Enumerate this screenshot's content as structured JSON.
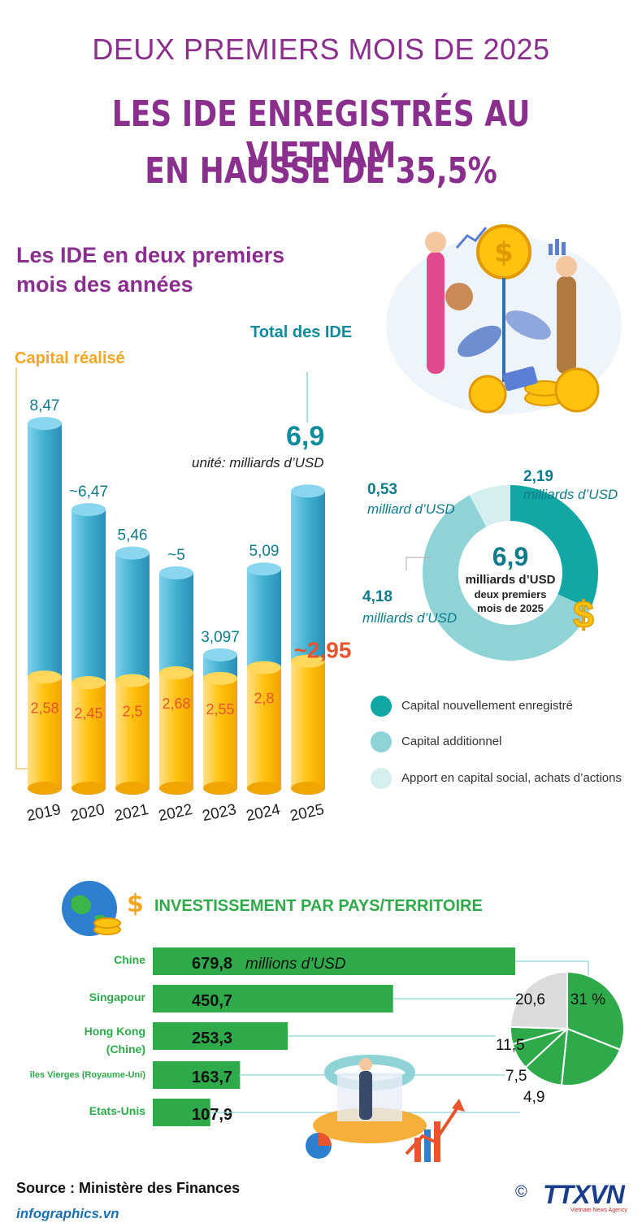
{
  "header": {
    "supertitle": "DEUX PREMIERS MOIS DE 2025",
    "headline_line1": "LES IDE ENREGISTRÉS AU VIETNAM",
    "headline_line2": "EN HAUSSE DE 35,5%"
  },
  "section_title": "Les IDE en deux premiers mois des années",
  "colors": {
    "title_purple": "#8b2f8f",
    "total_teal": "#3fb0cf",
    "realised_yellow": "#ffc20e",
    "value_orange": "#e8552d",
    "new_capital": "#12a7a5",
    "additional_capital": "#8fd3d6",
    "share_purchase": "#d5eff1",
    "country_green": "#2eaa4a"
  },
  "chart_data": [
    {
      "type": "bar",
      "title": "Les IDE en deux premiers mois des années",
      "unit_note": "unité: milliards d’USD",
      "categories": [
        "2019",
        "2020",
        "2021",
        "2022",
        "2023",
        "2024",
        "2025"
      ],
      "series": [
        {
          "name": "Total des IDE",
          "values": [
            8.47,
            6.47,
            5.46,
            5.0,
            3.097,
            5.09,
            6.9
          ],
          "labels": [
            "8,47",
            "~6,47",
            "5,46",
            "~5",
            "3,097",
            "5,09",
            "6,9"
          ]
        },
        {
          "name": "Capital réalisé",
          "values": [
            2.58,
            2.45,
            2.5,
            2.68,
            2.55,
            2.8,
            2.95
          ],
          "labels": [
            "2,58",
            "2,45",
            "2,5",
            "2,68",
            "2,55",
            "2,8",
            "~2,95"
          ]
        }
      ]
    },
    {
      "type": "pie",
      "center_value": "6,9",
      "center_unit": "milliards d’USD",
      "center_caption": "deux premiers mois de 2025",
      "slices": [
        {
          "name": "Capital nouvellement enregistré",
          "value": 2.19,
          "label": "2,19",
          "unit": "milliards d’USD"
        },
        {
          "name": "Capital additionnel",
          "value": 4.18,
          "label": "4,18",
          "unit": "milliards d’USD"
        },
        {
          "name": "Apport en capital social, achats d’actions",
          "value": 0.53,
          "label": "0,53",
          "unit": "milliard d’USD"
        }
      ]
    },
    {
      "type": "bar",
      "title": "INVESTISSEMENT PAR PAYS/TERRITOIRE",
      "unit": "millions d’USD",
      "categories": [
        "Chine",
        "Singapour",
        "Hong Kong (Chine)",
        "îles Vierges (Royaume-Uni)",
        "Etats-Unis"
      ],
      "values": [
        679.8,
        450.7,
        253.3,
        163.7,
        107.9
      ],
      "labels": [
        "679,8",
        "450,7",
        "253,3",
        "163,7",
        "107,9"
      ]
    },
    {
      "type": "pie",
      "slices": [
        {
          "value": 31,
          "label": "31 %"
        },
        {
          "value": 20.6,
          "label": "20,6"
        },
        {
          "value": 11.5,
          "label": "11,5"
        },
        {
          "value": 7.5,
          "label": "7,5"
        },
        {
          "value": 4.9,
          "label": "4,9"
        },
        {
          "value": 24.5
        }
      ]
    }
  ],
  "footer": {
    "source": "Source : Ministère des Finances",
    "website": "infographics.vn",
    "copyright": "©",
    "brand": "TTXVN",
    "brand_sub": "Vietnam News Agency"
  }
}
